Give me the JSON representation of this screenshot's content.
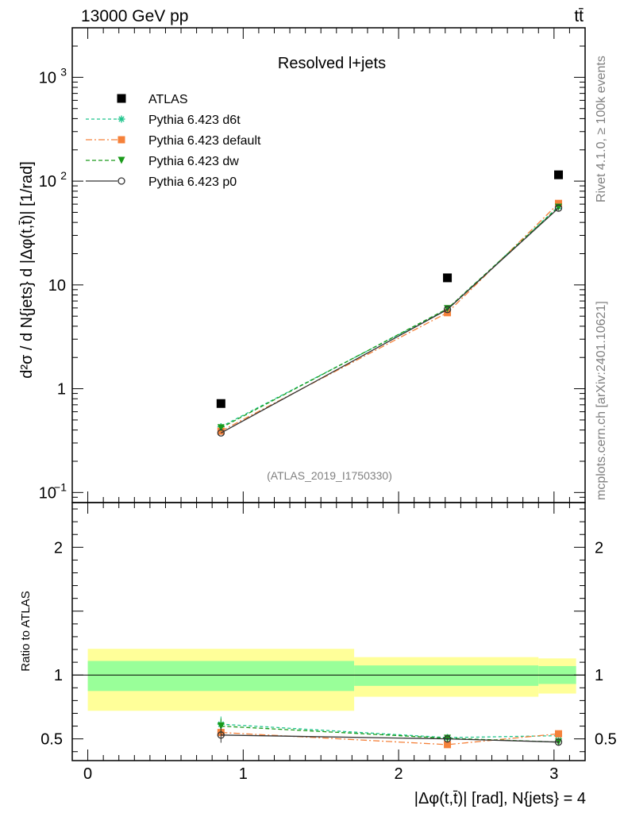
{
  "header": {
    "left": "13000 GeV pp",
    "right": "tt̄"
  },
  "side_labels": {
    "rivet": "Rivet 4.1.0, ≥ 100k events",
    "mcplots": "mcplots.cern.ch [arXiv:2401.10621]"
  },
  "colors": {
    "atlas": "#000000",
    "d6t": "#1fc48c",
    "default": "#f5813a",
    "dw": "#1a9a1a",
    "p0": "#333333",
    "band_inner": "#99ff99",
    "band_outer": "#ffff99"
  },
  "chart_data": [
    {
      "type": "line",
      "panel": "main",
      "title": "Resolved l+jets",
      "watermark": "(ATLAS_2019_I1750330)",
      "ylabel": "d²σ / d N{jets} d |Δφ(t,t̄)| [1/rad]",
      "yscale": "log",
      "ylim": [
        0.08,
        3000
      ],
      "xlim": [
        -0.1,
        3.2
      ],
      "yticks": [
        {
          "value": 1000,
          "label": "10",
          "exp": "3"
        },
        {
          "value": 100,
          "label": "10",
          "exp": "2"
        },
        {
          "value": 10,
          "label": "10",
          "exp": ""
        },
        {
          "value": 1,
          "label": "1",
          "exp": ""
        },
        {
          "value": 0.1,
          "label": "10",
          "exp": "−1"
        }
      ],
      "x": [
        0.857,
        2.314,
        3.029
      ],
      "series": [
        {
          "name": "ATLAS",
          "key": "atlas",
          "marker": "square",
          "values": [
            0.72,
            11.7,
            115
          ]
        },
        {
          "name": "Pythia 6.423 d6t",
          "key": "d6t",
          "marker": "star",
          "dash": "4 3",
          "values": [
            0.43,
            5.8,
            57
          ]
        },
        {
          "name": "Pythia 6.423 default",
          "key": "default",
          "marker": "square",
          "dash": "8 3 2 3",
          "values": [
            0.39,
            5.4,
            61
          ]
        },
        {
          "name": "Pythia 6.423 dw",
          "key": "dw",
          "marker": "triangle-down",
          "dash": "5 3",
          "values": [
            0.42,
            5.9,
            56
          ]
        },
        {
          "name": "Pythia 6.423 p0",
          "key": "p0",
          "marker": "circle-open",
          "dash": "",
          "values": [
            0.375,
            5.8,
            55
          ]
        }
      ]
    },
    {
      "type": "line",
      "panel": "ratio",
      "ylabel": "Ratio to ATLAS",
      "xlabel": "|Δφ(t,t̄)| [rad], N{jets} = 4",
      "ylim": [
        0.33,
        2.35
      ],
      "xlim": [
        -0.1,
        3.2
      ],
      "xticks": [
        0,
        1,
        2,
        3
      ],
      "yticks": [
        0.5,
        1,
        2
      ],
      "bands": [
        {
          "x0": 0,
          "x1": 1.714,
          "inner": [
            0.875,
            1.11
          ],
          "outer": [
            0.72,
            1.205
          ]
        },
        {
          "x0": 1.714,
          "x1": 2.9,
          "inner": [
            0.915,
            1.075
          ],
          "outer": [
            0.83,
            1.14
          ]
        },
        {
          "x0": 2.9,
          "x1": 3.142,
          "inner": [
            0.93,
            1.07
          ],
          "outer": [
            0.855,
            1.13
          ]
        }
      ],
      "x": [
        0.857,
        2.314,
        3.029
      ],
      "series": [
        {
          "name": "Pythia 6.423 d6t",
          "key": "d6t",
          "marker": "star",
          "dash": "4 3",
          "values": [
            0.615,
            0.51,
            0.525
          ],
          "err": [
            0.06,
            0.01,
            0.01
          ]
        },
        {
          "name": "Pythia 6.423 default",
          "key": "default",
          "marker": "square",
          "dash": "8 3 2 3",
          "values": [
            0.55,
            0.455,
            0.54
          ],
          "err": [
            0.05,
            0.01,
            0.01
          ]
        },
        {
          "name": "Pythia 6.423 dw",
          "key": "dw",
          "marker": "triangle-down",
          "dash": "5 3",
          "values": [
            0.6,
            0.505,
            0.475
          ],
          "err": [
            0.06,
            0.01,
            0.01
          ]
        },
        {
          "name": "Pythia 6.423 p0",
          "key": "p0",
          "marker": "circle-open",
          "dash": "",
          "values": [
            0.53,
            0.5,
            0.475
          ],
          "err": [
            0.06,
            0.01,
            0.01
          ]
        }
      ]
    }
  ]
}
